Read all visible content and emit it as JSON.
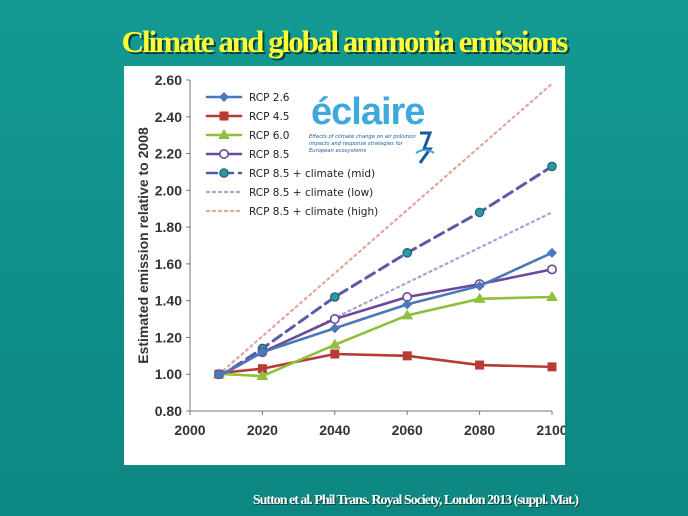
{
  "slide": {
    "title": "Climate and global ammonia emissions",
    "citation": "Sutton et al. Phil Trans. Royal Society, London 2013 (suppl. Mat.)"
  },
  "logo": {
    "word": "éclaire",
    "tagline": "Effects of climate change on air pollution impacts and response strategies for European ecosystems"
  },
  "chart_data": {
    "type": "line",
    "title": "",
    "xlabel": "",
    "ylabel": "Estimated emission relative to 2008",
    "xlim": [
      2000,
      2100
    ],
    "ylim": [
      0.8,
      2.6
    ],
    "xticks": [
      "2000",
      "2020",
      "2040",
      "2060",
      "2080",
      "2100"
    ],
    "yticks": [
      "0.80",
      "1.00",
      "1.20",
      "1.40",
      "1.60",
      "1.80",
      "2.00",
      "2.20",
      "2.40",
      "2.60"
    ],
    "grid": false,
    "legend_position": "top-left",
    "series": [
      {
        "name": "RCP 2.6",
        "color": "#4a78b8",
        "style": "solid",
        "marker": "diamond",
        "x": [
          2008,
          2010,
          2020,
          2040,
          2060,
          2080,
          2100
        ],
        "y": [
          1.0,
          1.01,
          1.12,
          1.25,
          1.38,
          1.48,
          1.66
        ]
      },
      {
        "name": "RCP 4.5",
        "color": "#b83a34",
        "style": "solid",
        "marker": "square",
        "x": [
          2008,
          2010,
          2020,
          2040,
          2060,
          2080,
          2100
        ],
        "y": [
          1.0,
          1.01,
          1.03,
          1.11,
          1.1,
          1.05,
          1.04
        ]
      },
      {
        "name": "RCP 6.0",
        "color": "#8fbf3c",
        "style": "solid",
        "marker": "triangle",
        "x": [
          2008,
          2010,
          2020,
          2040,
          2060,
          2080,
          2100
        ],
        "y": [
          1.0,
          1.0,
          0.99,
          1.16,
          1.32,
          1.41,
          1.42
        ]
      },
      {
        "name": "RCP 8.5",
        "color": "#6a4a9c",
        "style": "solid",
        "marker": "circle",
        "x": [
          2008,
          2010,
          2020,
          2040,
          2060,
          2080,
          2100
        ],
        "y": [
          1.0,
          1.01,
          1.12,
          1.3,
          1.42,
          1.49,
          1.57
        ]
      },
      {
        "name": "RCP 8.5 + climate (mid)",
        "color": "#5b5aa8",
        "style": "dashed",
        "marker": "circle-teal",
        "x": [
          2008,
          2010,
          2020,
          2040,
          2060,
          2080,
          2100
        ],
        "y": [
          1.0,
          1.01,
          1.14,
          1.42,
          1.66,
          1.88,
          2.13
        ]
      },
      {
        "name": "RCP 8.5 + climate (low)",
        "color": "#a7a2d4",
        "style": "dotted",
        "marker": "none",
        "x": [
          2008,
          2100
        ],
        "y": [
          1.0,
          1.88
        ]
      },
      {
        "name": "RCP 8.5 + climate (high)",
        "color": "#e3a49c",
        "style": "dotted",
        "marker": "none",
        "x": [
          2008,
          2100
        ],
        "y": [
          1.0,
          2.58
        ]
      }
    ]
  }
}
